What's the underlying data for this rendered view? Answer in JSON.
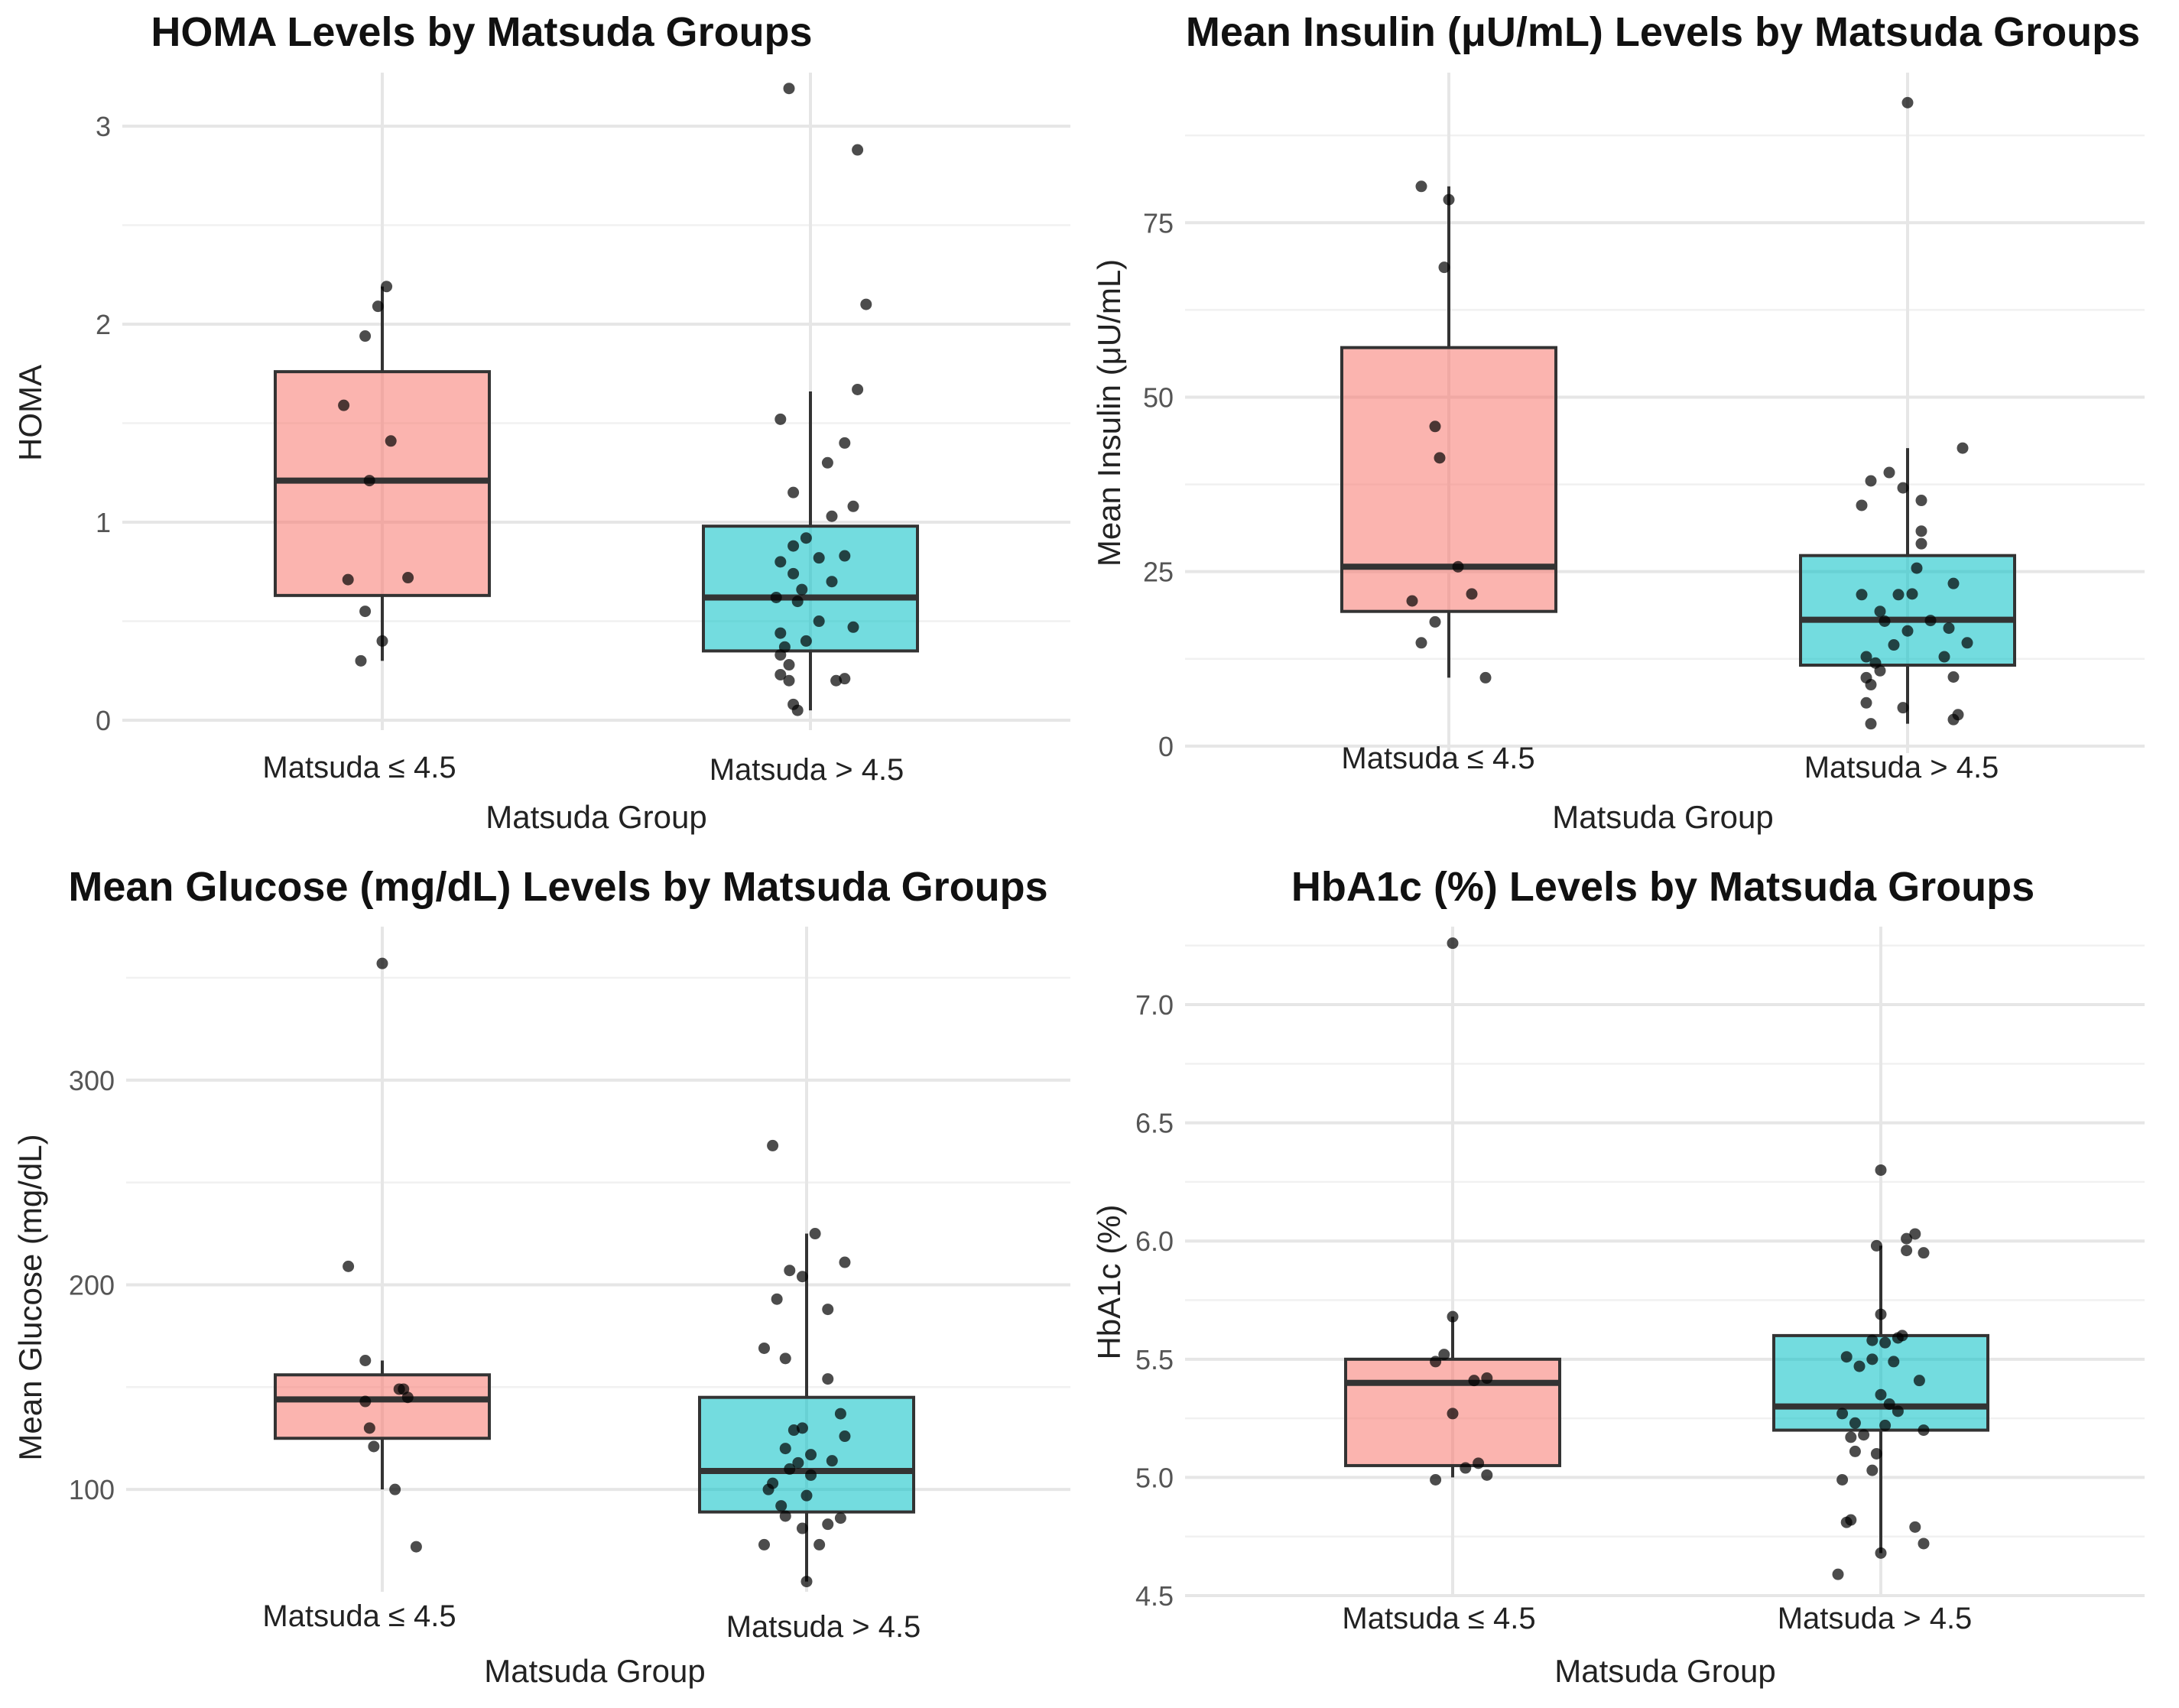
{
  "colors": {
    "group1": "#F8766D",
    "group2": "#00BFC4",
    "points": "#000000"
  },
  "charts": [
    {
      "title": "HOMA Levels by Matsuda Groups",
      "xlabel": "Matsuda Group",
      "ylabel": "HOMA",
      "yticks": [
        "0",
        "1",
        "2",
        "3"
      ],
      "categories": [
        "Matsuda ≤ 4.5",
        "Matsuda > 4.5"
      ]
    },
    {
      "title": "Mean Insulin (μU/mL) Levels by Matsuda Groups",
      "xlabel": "Matsuda Group",
      "ylabel": "Mean Insulin (μU/mL)",
      "yticks": [
        "0",
        "25",
        "50",
        "75"
      ],
      "categories": [
        "Matsuda ≤ 4.5",
        "Matsuda > 4.5"
      ]
    },
    {
      "title": "Mean Glucose (mg/dL) Levels by Matsuda Groups",
      "xlabel": "Matsuda Group",
      "ylabel": "Mean Glucose (mg/dL)",
      "yticks": [
        "100",
        "200",
        "300"
      ],
      "categories": [
        "Matsuda ≤ 4.5",
        "Matsuda > 4.5"
      ]
    },
    {
      "title": "HbA1c (%) Levels by Matsuda Groups",
      "xlabel": "Matsuda Group",
      "ylabel": "HbA1c (%)",
      "yticks": [
        "4.5",
        "5.0",
        "5.5",
        "6.0",
        "6.5",
        "7.0"
      ],
      "categories": [
        "Matsuda ≤ 4.5",
        "Matsuda > 4.5"
      ]
    }
  ],
  "chart_data": [
    {
      "type": "box",
      "title": "HOMA Levels by Matsuda Groups",
      "xlabel": "Matsuda Group",
      "ylabel": "HOMA",
      "categories": [
        "Matsuda ≤ 4.5",
        "Matsuda > 4.5"
      ],
      "ylim": [
        -0.05,
        3.27
      ],
      "yticks": [
        0,
        1,
        2,
        3
      ],
      "boxes": [
        {
          "group": "Matsuda ≤ 4.5",
          "lower_whisker": 0.3,
          "q1": 0.63,
          "median": 1.21,
          "q3": 1.76,
          "upper_whisker": 2.19
        },
        {
          "group": "Matsuda > 4.5",
          "lower_whisker": 0.05,
          "q1": 0.35,
          "median": 0.62,
          "q3": 0.98,
          "upper_whisker": 1.66
        }
      ],
      "points": [
        [
          {
            "x": 0.95,
            "y": 0.3
          },
          {
            "x": 1.0,
            "y": 0.4
          },
          {
            "x": 0.96,
            "y": 0.55
          },
          {
            "x": 0.92,
            "y": 0.71
          },
          {
            "x": 1.06,
            "y": 0.72
          },
          {
            "x": 0.97,
            "y": 1.21
          },
          {
            "x": 1.02,
            "y": 1.41
          },
          {
            "x": 0.91,
            "y": 1.59
          },
          {
            "x": 0.96,
            "y": 1.94
          },
          {
            "x": 0.99,
            "y": 2.09
          },
          {
            "x": 1.01,
            "y": 2.19
          }
        ],
        [
          {
            "x": 1.97,
            "y": 0.05
          },
          {
            "x": 1.96,
            "y": 0.08
          },
          {
            "x": 1.95,
            "y": 0.2
          },
          {
            "x": 2.06,
            "y": 0.2
          },
          {
            "x": 2.08,
            "y": 0.21
          },
          {
            "x": 1.93,
            "y": 0.23
          },
          {
            "x": 1.95,
            "y": 0.28
          },
          {
            "x": 1.93,
            "y": 0.33
          },
          {
            "x": 1.94,
            "y": 0.37
          },
          {
            "x": 1.99,
            "y": 0.4
          },
          {
            "x": 1.93,
            "y": 0.44
          },
          {
            "x": 2.1,
            "y": 0.47
          },
          {
            "x": 2.02,
            "y": 0.5
          },
          {
            "x": 1.92,
            "y": 0.62
          },
          {
            "x": 1.97,
            "y": 0.6
          },
          {
            "x": 1.98,
            "y": 0.66
          },
          {
            "x": 2.05,
            "y": 0.7
          },
          {
            "x": 1.96,
            "y": 0.74
          },
          {
            "x": 1.93,
            "y": 0.8
          },
          {
            "x": 2.02,
            "y": 0.82
          },
          {
            "x": 2.08,
            "y": 0.83
          },
          {
            "x": 1.96,
            "y": 0.88
          },
          {
            "x": 1.99,
            "y": 0.92
          },
          {
            "x": 2.1,
            "y": 1.08
          },
          {
            "x": 2.05,
            "y": 1.03
          },
          {
            "x": 1.96,
            "y": 1.15
          },
          {
            "x": 2.04,
            "y": 1.3
          },
          {
            "x": 2.08,
            "y": 1.4
          },
          {
            "x": 1.93,
            "y": 1.52
          },
          {
            "x": 2.11,
            "y": 1.67
          },
          {
            "x": 2.13,
            "y": 2.1
          },
          {
            "x": 2.11,
            "y": 2.88
          },
          {
            "x": 1.95,
            "y": 3.19
          }
        ]
      ]
    },
    {
      "type": "box",
      "title": "Mean Insulin (μU/mL) Levels by Matsuda Groups",
      "xlabel": "Matsuda Group",
      "ylabel": "Mean Insulin (μU/mL)",
      "categories": [
        "Matsuda ≤ 4.5",
        "Matsuda > 4.5"
      ],
      "ylim": [
        -1,
        96.5
      ],
      "yticks": [
        0,
        25,
        50,
        75
      ],
      "boxes": [
        {
          "group": "Matsuda ≤ 4.5",
          "lower_whisker": 9.8,
          "q1": 19.3,
          "median": 25.7,
          "q3": 57.1,
          "upper_whisker": 80.2
        },
        {
          "group": "Matsuda > 4.5",
          "lower_whisker": 3.2,
          "q1": 11.6,
          "median": 18.1,
          "q3": 27.3,
          "upper_whisker": 42.7
        }
      ],
      "points": [
        [
          {
            "x": 0.94,
            "y": 14.8
          },
          {
            "x": 0.97,
            "y": 17.8
          },
          {
            "x": 0.92,
            "y": 20.8
          },
          {
            "x": 1.05,
            "y": 21.8
          },
          {
            "x": 1.02,
            "y": 25.7
          },
          {
            "x": 0.98,
            "y": 41.3
          },
          {
            "x": 0.97,
            "y": 45.8
          },
          {
            "x": 1.08,
            "y": 9.8
          },
          {
            "x": 0.99,
            "y": 68.6
          },
          {
            "x": 1.0,
            "y": 78.3
          },
          {
            "x": 0.94,
            "y": 80.2
          }
        ],
        [
          {
            "x": 1.92,
            "y": 3.2
          },
          {
            "x": 2.1,
            "y": 3.8
          },
          {
            "x": 2.11,
            "y": 4.5
          },
          {
            "x": 1.99,
            "y": 5.5
          },
          {
            "x": 1.91,
            "y": 6.2
          },
          {
            "x": 1.92,
            "y": 8.8
          },
          {
            "x": 1.91,
            "y": 9.8
          },
          {
            "x": 2.1,
            "y": 9.9
          },
          {
            "x": 1.94,
            "y": 10.8
          },
          {
            "x": 1.93,
            "y": 11.9
          },
          {
            "x": 1.91,
            "y": 12.8
          },
          {
            "x": 2.08,
            "y": 12.8
          },
          {
            "x": 1.97,
            "y": 14.5
          },
          {
            "x": 2.13,
            "y": 14.8
          },
          {
            "x": 2.0,
            "y": 16.5
          },
          {
            "x": 2.09,
            "y": 16.9
          },
          {
            "x": 1.95,
            "y": 17.9
          },
          {
            "x": 2.05,
            "y": 18.0
          },
          {
            "x": 1.94,
            "y": 19.3
          },
          {
            "x": 1.9,
            "y": 21.7
          },
          {
            "x": 1.98,
            "y": 21.7
          },
          {
            "x": 2.01,
            "y": 21.8
          },
          {
            "x": 2.1,
            "y": 23.3
          },
          {
            "x": 2.02,
            "y": 25.5
          },
          {
            "x": 2.03,
            "y": 29.0
          },
          {
            "x": 2.03,
            "y": 30.8
          },
          {
            "x": 1.9,
            "y": 34.5
          },
          {
            "x": 2.03,
            "y": 35.2
          },
          {
            "x": 1.99,
            "y": 37.0
          },
          {
            "x": 1.92,
            "y": 38.0
          },
          {
            "x": 1.96,
            "y": 39.2
          },
          {
            "x": 2.12,
            "y": 42.7
          },
          {
            "x": 2.0,
            "y": 92.2
          }
        ]
      ]
    },
    {
      "type": "box",
      "title": "Mean Glucose (mg/dL) Levels by Matsuda Groups",
      "xlabel": "Matsuda Group",
      "ylabel": "Mean Glucose (mg/dL)",
      "categories": [
        "Matsuda ≤ 4.5",
        "Matsuda > 4.5"
      ],
      "ylim": [
        50,
        375
      ],
      "yticks": [
        100,
        200,
        300
      ],
      "boxes": [
        {
          "group": "Matsuda ≤ 4.5",
          "lower_whisker": 100,
          "q1": 125,
          "median": 144,
          "q3": 156,
          "upper_whisker": 163
        },
        {
          "group": "Matsuda > 4.5",
          "lower_whisker": 55,
          "q1": 89,
          "median": 109,
          "q3": 145,
          "upper_whisker": 225
        }
      ],
      "points": [
        [
          {
            "x": 1.08,
            "y": 72
          },
          {
            "x": 1.03,
            "y": 100
          },
          {
            "x": 0.98,
            "y": 121
          },
          {
            "x": 0.97,
            "y": 130
          },
          {
            "x": 0.96,
            "y": 143
          },
          {
            "x": 1.06,
            "y": 145
          },
          {
            "x": 1.05,
            "y": 149
          },
          {
            "x": 1.04,
            "y": 149
          },
          {
            "x": 0.96,
            "y": 163
          },
          {
            "x": 0.92,
            "y": 209
          },
          {
            "x": 1.0,
            "y": 357
          }
        ],
        [
          {
            "x": 2.0,
            "y": 55
          },
          {
            "x": 1.9,
            "y": 73
          },
          {
            "x": 2.03,
            "y": 73
          },
          {
            "x": 1.99,
            "y": 81
          },
          {
            "x": 2.05,
            "y": 83
          },
          {
            "x": 2.08,
            "y": 86
          },
          {
            "x": 1.95,
            "y": 87
          },
          {
            "x": 1.94,
            "y": 92
          },
          {
            "x": 2.0,
            "y": 97
          },
          {
            "x": 1.91,
            "y": 100
          },
          {
            "x": 1.92,
            "y": 103
          },
          {
            "x": 2.01,
            "y": 107
          },
          {
            "x": 1.96,
            "y": 110
          },
          {
            "x": 1.98,
            "y": 113
          },
          {
            "x": 2.06,
            "y": 114
          },
          {
            "x": 2.01,
            "y": 117
          },
          {
            "x": 1.95,
            "y": 120
          },
          {
            "x": 2.09,
            "y": 126
          },
          {
            "x": 1.97,
            "y": 129
          },
          {
            "x": 1.99,
            "y": 130
          },
          {
            "x": 2.08,
            "y": 137
          },
          {
            "x": 2.05,
            "y": 154
          },
          {
            "x": 1.95,
            "y": 164
          },
          {
            "x": 1.9,
            "y": 169
          },
          {
            "x": 2.05,
            "y": 188
          },
          {
            "x": 1.93,
            "y": 193
          },
          {
            "x": 1.96,
            "y": 207
          },
          {
            "x": 1.99,
            "y": 204
          },
          {
            "x": 2.09,
            "y": 211
          },
          {
            "x": 2.02,
            "y": 225
          },
          {
            "x": 1.92,
            "y": 268
          }
        ]
      ]
    },
    {
      "type": "box",
      "title": "HbA1c (%) Levels by Matsuda Groups",
      "xlabel": "Matsuda Group",
      "ylabel": "HbA1c (%)",
      "categories": [
        "Matsuda ≤ 4.5",
        "Matsuda > 4.5"
      ],
      "ylim": [
        4.5,
        7.33
      ],
      "yticks": [
        4.5,
        5.0,
        5.5,
        6.0,
        6.5,
        7.0
      ],
      "boxes": [
        {
          "group": "Matsuda ≤ 4.5",
          "lower_whisker": 5.0,
          "q1": 5.05,
          "median": 5.4,
          "q3": 5.5,
          "upper_whisker": 5.68
        },
        {
          "group": "Matsuda > 4.5",
          "lower_whisker": 4.68,
          "q1": 5.2,
          "median": 5.3,
          "q3": 5.6,
          "upper_whisker": 5.98
        }
      ],
      "points": [
        [
          {
            "x": 0.96,
            "y": 4.99
          },
          {
            "x": 1.08,
            "y": 5.01
          },
          {
            "x": 1.06,
            "y": 5.06
          },
          {
            "x": 1.03,
            "y": 5.04
          },
          {
            "x": 1.0,
            "y": 5.27
          },
          {
            "x": 1.05,
            "y": 5.41
          },
          {
            "x": 1.08,
            "y": 5.42
          },
          {
            "x": 0.96,
            "y": 5.49
          },
          {
            "x": 0.98,
            "y": 5.52
          },
          {
            "x": 1.0,
            "y": 5.68
          },
          {
            "x": 1.0,
            "y": 7.26
          }
        ],
        [
          {
            "x": 1.9,
            "y": 4.59
          },
          {
            "x": 2.1,
            "y": 4.72
          },
          {
            "x": 2.0,
            "y": 4.68
          },
          {
            "x": 2.08,
            "y": 4.79
          },
          {
            "x": 1.92,
            "y": 4.81
          },
          {
            "x": 1.93,
            "y": 4.82
          },
          {
            "x": 1.91,
            "y": 4.99
          },
          {
            "x": 1.98,
            "y": 5.03
          },
          {
            "x": 1.94,
            "y": 5.11
          },
          {
            "x": 1.99,
            "y": 5.1
          },
          {
            "x": 1.93,
            "y": 5.17
          },
          {
            "x": 1.96,
            "y": 5.18
          },
          {
            "x": 1.94,
            "y": 5.23
          },
          {
            "x": 2.01,
            "y": 5.22
          },
          {
            "x": 2.1,
            "y": 5.2
          },
          {
            "x": 1.91,
            "y": 5.27
          },
          {
            "x": 2.02,
            "y": 5.31
          },
          {
            "x": 2.04,
            "y": 5.28
          },
          {
            "x": 2.09,
            "y": 5.41
          },
          {
            "x": 2.0,
            "y": 5.35
          },
          {
            "x": 1.95,
            "y": 5.47
          },
          {
            "x": 1.98,
            "y": 5.5
          },
          {
            "x": 1.92,
            "y": 5.51
          },
          {
            "x": 2.03,
            "y": 5.49
          },
          {
            "x": 2.01,
            "y": 5.57
          },
          {
            "x": 1.98,
            "y": 5.58
          },
          {
            "x": 2.05,
            "y": 5.6
          },
          {
            "x": 2.04,
            "y": 5.59
          },
          {
            "x": 2.0,
            "y": 5.69
          },
          {
            "x": 1.99,
            "y": 5.98
          },
          {
            "x": 2.06,
            "y": 5.96
          },
          {
            "x": 2.1,
            "y": 5.95
          },
          {
            "x": 2.06,
            "y": 6.01
          },
          {
            "x": 2.08,
            "y": 6.03
          },
          {
            "x": 2.0,
            "y": 6.3
          }
        ]
      ]
    }
  ]
}
